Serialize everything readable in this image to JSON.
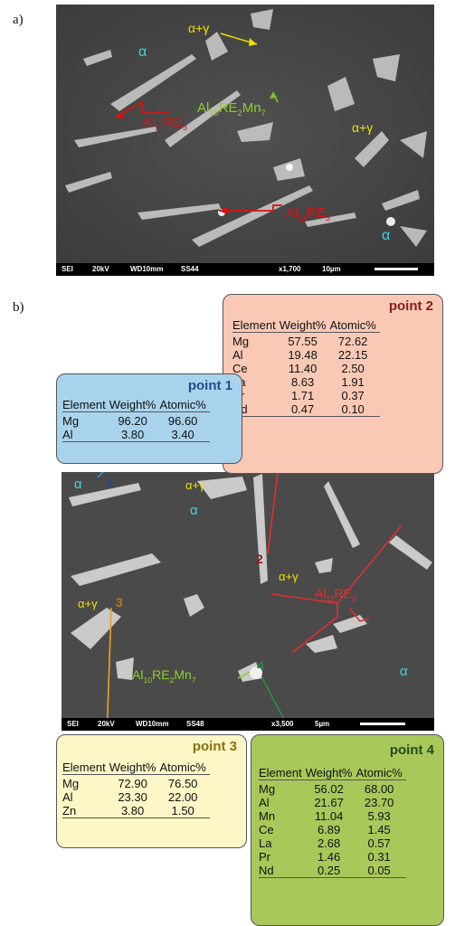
{
  "panels": {
    "a": "a)",
    "b": "b)"
  },
  "image_a": {
    "labels": {
      "alpha_top": "α",
      "alpha_gamma_top": "α+γ",
      "al10_base": "Al",
      "al10_sub1": "10",
      "al10_re": "RE",
      "al10_sub2": "2",
      "al10_mn": "Mn",
      "al10_sub3": "7",
      "al11_top_base": "Al",
      "al11_top_sub": "11",
      "al11_top_re": "RE",
      "al11_top_sub2": "3",
      "alpha_gamma_right": "α+γ",
      "al11_bot_base": "Al",
      "al11_bot_sub": "11",
      "al11_bot_re": "RE",
      "al11_bot_sub2": "3",
      "alpha_bottom": "α"
    },
    "scalebar": {
      "mode": "SEI",
      "kv": "20kV",
      "wd": "WD10mm",
      "ss": "SS44",
      "mag": "x1,700",
      "scale": "10µm"
    }
  },
  "image_b": {
    "labels": {
      "alpha_topleft": "α",
      "num1": "1",
      "alpha_gamma_top": "α+γ",
      "alpha_mid": "α",
      "num2": "2",
      "alpha_gamma_mid": "α+γ",
      "al11_base": "Al",
      "al11_sub": "11",
      "al11_re": "RE",
      "al11_sub2": "3",
      "alpha_gamma_left": "α+γ",
      "num3": "3",
      "al10_base": "Al",
      "al10_sub1": "10",
      "al10_re": "RE",
      "al10_sub2": "2",
      "al10_mn": "Mn",
      "al10_sub3": "7",
      "num4": "4",
      "alpha_right": "α"
    },
    "scalebar": {
      "mode": "SEI",
      "kv": "20kV",
      "wd": "WD10mm",
      "ss": "SS48",
      "mag": "x3,500",
      "scale": "5µm"
    }
  },
  "tables": {
    "headers": {
      "element": "Element",
      "weight": "Weight%",
      "atomic": "Atomic%"
    },
    "point1": {
      "title": "point 1",
      "bg": "#a9d3ec",
      "title_color": "#1f4f8a",
      "rows": [
        [
          "Mg",
          "96.20",
          "96.60"
        ],
        [
          "Al",
          "3.80",
          "3.40"
        ]
      ]
    },
    "point2": {
      "title": "point 2",
      "bg": "#f9c9b6",
      "title_color": "#8b1a1a",
      "rows": [
        [
          "Mg",
          "57.55",
          "72.62"
        ],
        [
          "Al",
          "19.48",
          "22.15"
        ],
        [
          "Ce",
          "11.40",
          "2.50"
        ],
        [
          "La",
          "8.63",
          "1.91"
        ],
        [
          "Pr",
          "1.71",
          "0.37"
        ],
        [
          "Nd",
          "0.47",
          "0.10"
        ]
      ]
    },
    "point3": {
      "title": "point 3",
      "bg": "#fdf6c7",
      "title_color": "#8a7010",
      "rows": [
        [
          "Mg",
          "72.90",
          "76.50"
        ],
        [
          "Al",
          "23.30",
          "22.00"
        ],
        [
          "Zn",
          "3.80",
          "1.50"
        ]
      ]
    },
    "point4": {
      "title": "point 4",
      "bg": "#a9c85a",
      "title_color": "#1e4d1e",
      "rows": [
        [
          "Mg",
          "56.02",
          "68.00"
        ],
        [
          "Al",
          "21.67",
          "23.70"
        ],
        [
          "Mn",
          "11.04",
          "5.93"
        ],
        [
          "Ce",
          "6.89",
          "1.45"
        ],
        [
          "La",
          "2.68",
          "0.57"
        ],
        [
          "Pr",
          "1.46",
          "0.31"
        ],
        [
          "Nd",
          "0.25",
          "0.05"
        ]
      ]
    }
  }
}
